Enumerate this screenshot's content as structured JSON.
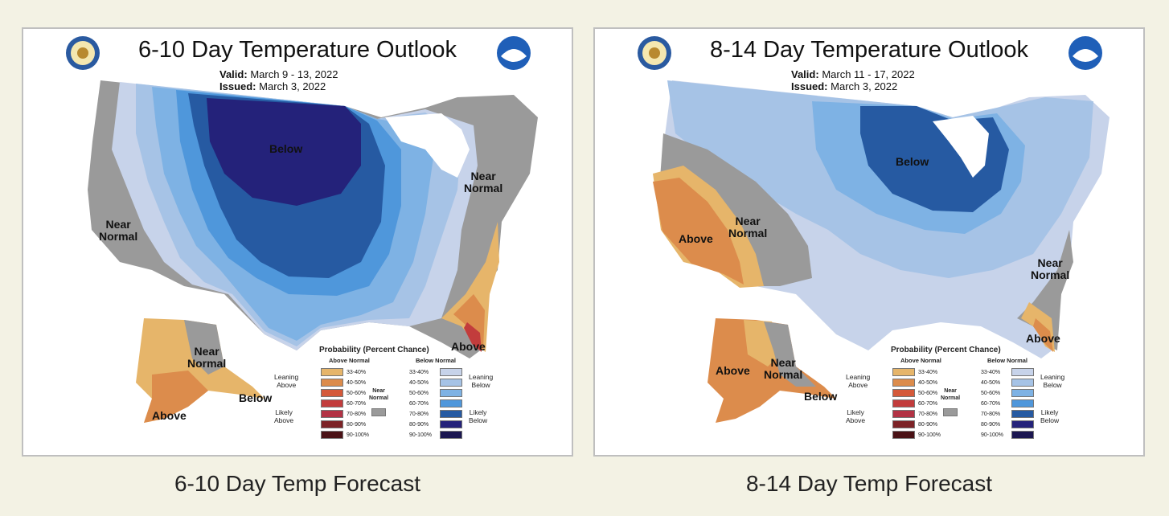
{
  "colors": {
    "near_normal": "#9a9a9a",
    "above": [
      "#e6b56a",
      "#dc8c4c",
      "#d4593a",
      "#c23c3c",
      "#b23244",
      "#7c2226",
      "#4a1216"
    ],
    "below": [
      "#c7d3ea",
      "#a6c3e6",
      "#7eb2e4",
      "#4f97db",
      "#265aa2",
      "#24227a",
      "#1b1650"
    ]
  },
  "left": {
    "title": "6-10 Day Temperature Outlook",
    "valid_label": "Valid:",
    "valid_value": "March 9 - 13, 2022",
    "issued_label": "Issued:",
    "issued_value": "March 3, 2022",
    "labels": {
      "below": "Below",
      "near_west": "Near\nNormal",
      "near_ne": "Near\nNormal",
      "near_ak": "Near\nNormal",
      "above_fl": "Above",
      "above_ak": "Above",
      "below_ak": "Below"
    },
    "caption": "6-10 Day Temp Forecast"
  },
  "right": {
    "title": "8-14 Day Temperature Outlook",
    "valid_label": "Valid:",
    "valid_value": "March 11 - 17, 2022",
    "issued_label": "Issued:",
    "issued_value": "March 3, 2022",
    "labels": {
      "below": "Below",
      "above_west": "Above",
      "near_west": "Near\nNormal",
      "near_se": "Near\nNormal",
      "above_fl": "Above",
      "above_ak": "Above",
      "near_ak": "Near\nNormal",
      "below_ak": "Below"
    },
    "caption": "8-14 Day Temp Forecast"
  },
  "legend": {
    "title": "Probability (Percent Chance)",
    "above_header": "Above Normal",
    "below_header": "Below Normal",
    "ranges": [
      "33-40%",
      "40-50%",
      "50-60%",
      "60-70%",
      "70-80%",
      "80-90%",
      "90-100%"
    ],
    "leaning_above": "Leaning\nAbove",
    "likely_above": "Likely\nAbove",
    "leaning_below": "Leaning\nBelow",
    "likely_below": "Likely\nBelow",
    "near_normal": "Near\nNormal"
  }
}
